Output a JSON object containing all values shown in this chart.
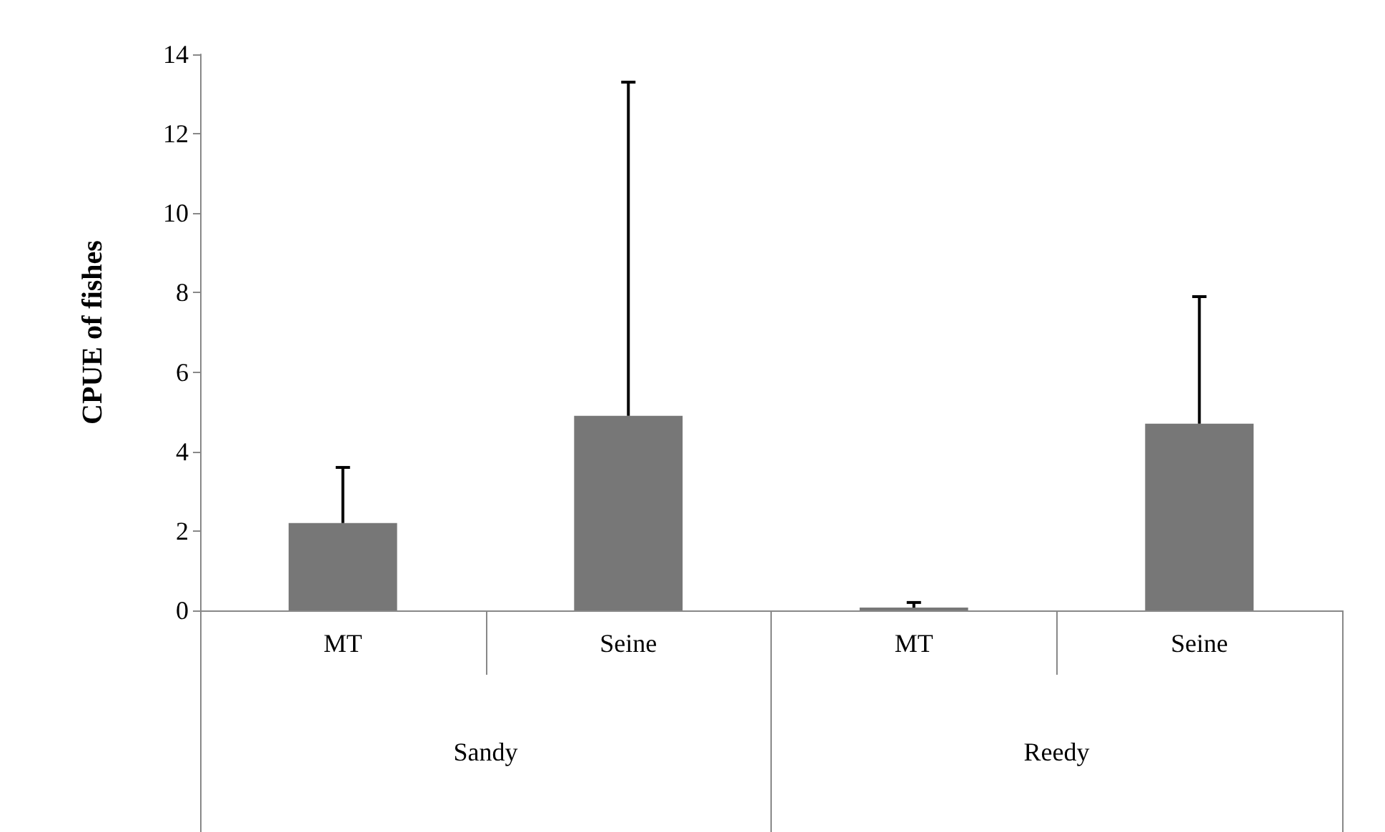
{
  "chart_data": {
    "type": "bar",
    "ylabel": "CPUE of fishes",
    "categories": [
      "MT",
      "Seine",
      "MT",
      "Seine"
    ],
    "annotations": [
      "Sandy",
      "Reedy"
    ],
    "values": [
      2.2,
      4.9,
      0.07,
      4.7
    ],
    "color": "#777777",
    "errors": [
      [
        2.2,
        3.6
      ],
      [
        4.9,
        13.3
      ],
      [
        0.07,
        0.2
      ],
      [
        4.7,
        7.9
      ]
    ],
    "ylim": [
      0,
      14
    ],
    "yticks": [
      0,
      2,
      4,
      6,
      8,
      10,
      12,
      14
    ],
    "grid": false,
    "legend": false
  }
}
